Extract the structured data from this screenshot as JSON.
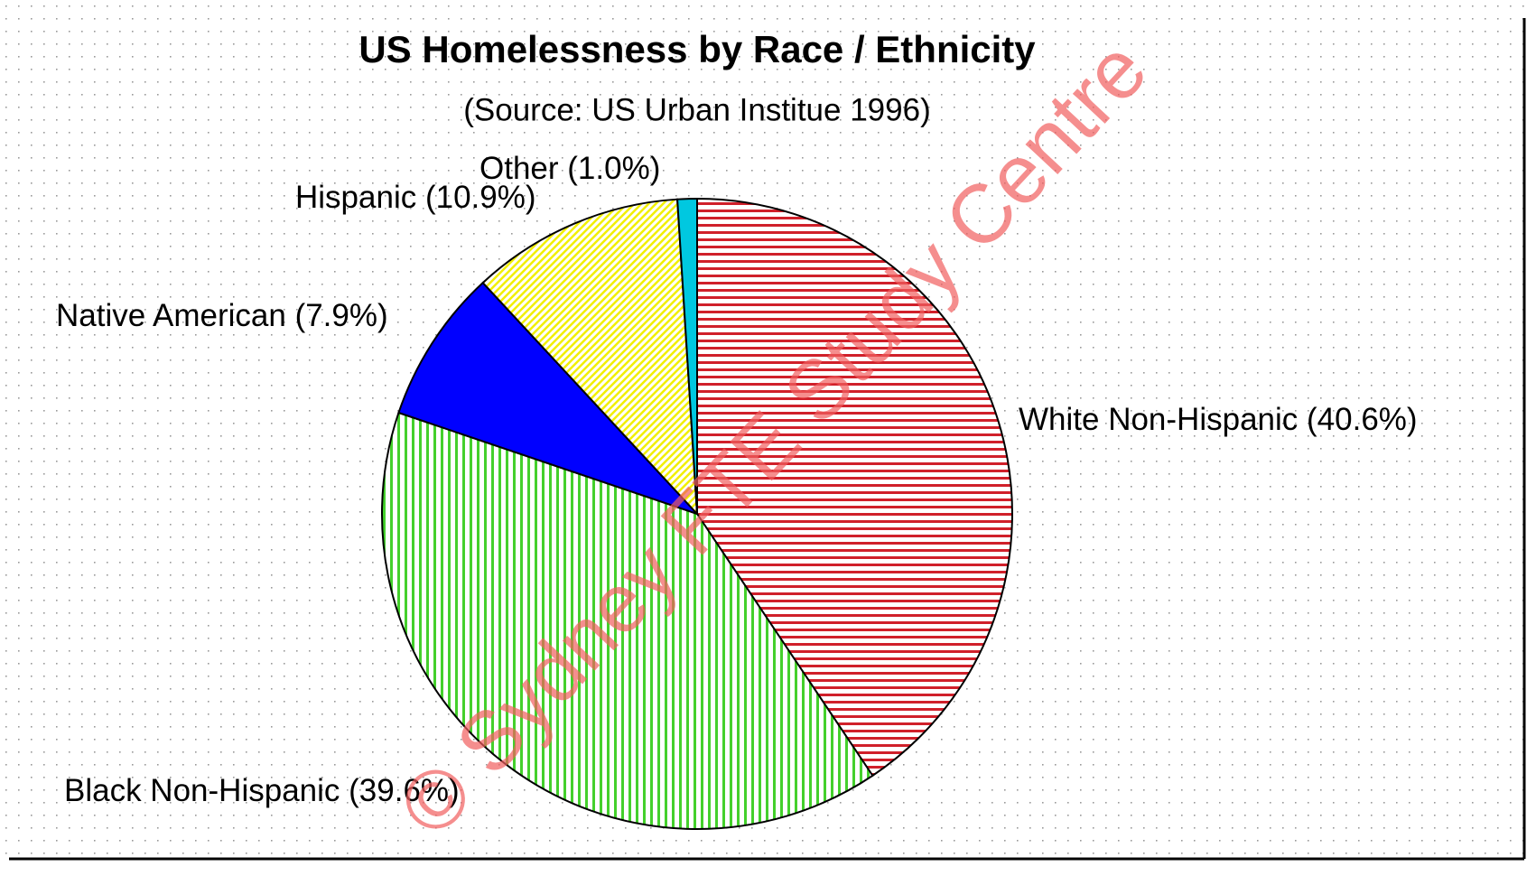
{
  "chart_data": {
    "type": "pie",
    "title": "US Homelessness by Race / Ethnicity",
    "subtitle": "(Source: US Urban Institue 1996)",
    "watermark": "© Sydney FTE Study Centre",
    "categories": [
      "White Non-Hispanic",
      "Black Non-Hispanic",
      "Native American",
      "Hispanic",
      "Other"
    ],
    "values": [
      40.6,
      39.6,
      7.9,
      10.9,
      1.0
    ],
    "value_labels": [
      "(40.6%)",
      "(39.6%)",
      "(7.9%)",
      "(10.9%)",
      "(1.0%)"
    ],
    "colors": [
      "#d0202a",
      "#44d02c",
      "#0000ff",
      "#f2f000",
      "#00c8e0"
    ]
  }
}
